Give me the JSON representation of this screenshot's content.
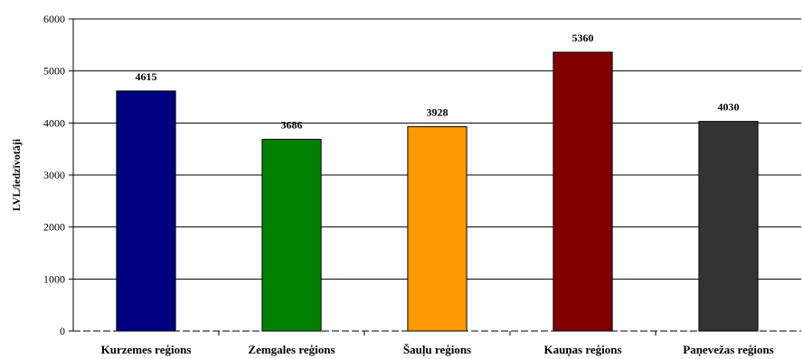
{
  "chart_data": {
    "type": "bar",
    "categories": [
      "Kurzemes reģions",
      "Zemgales reģions",
      "Šauļu reģions",
      "Kauņas reģions",
      "Paņevežas reģions"
    ],
    "values": [
      4615,
      3686,
      3928,
      5360,
      4030
    ],
    "colors": [
      "#000080",
      "#008000",
      "#ff9900",
      "#800000",
      "#333333"
    ],
    "ylabel": "LVL/iedzīvotāji",
    "ylim": [
      0,
      6000
    ],
    "yticks": [
      0,
      1000,
      2000,
      3000,
      4000,
      5000,
      6000
    ],
    "grid": true,
    "data_labels": true
  }
}
